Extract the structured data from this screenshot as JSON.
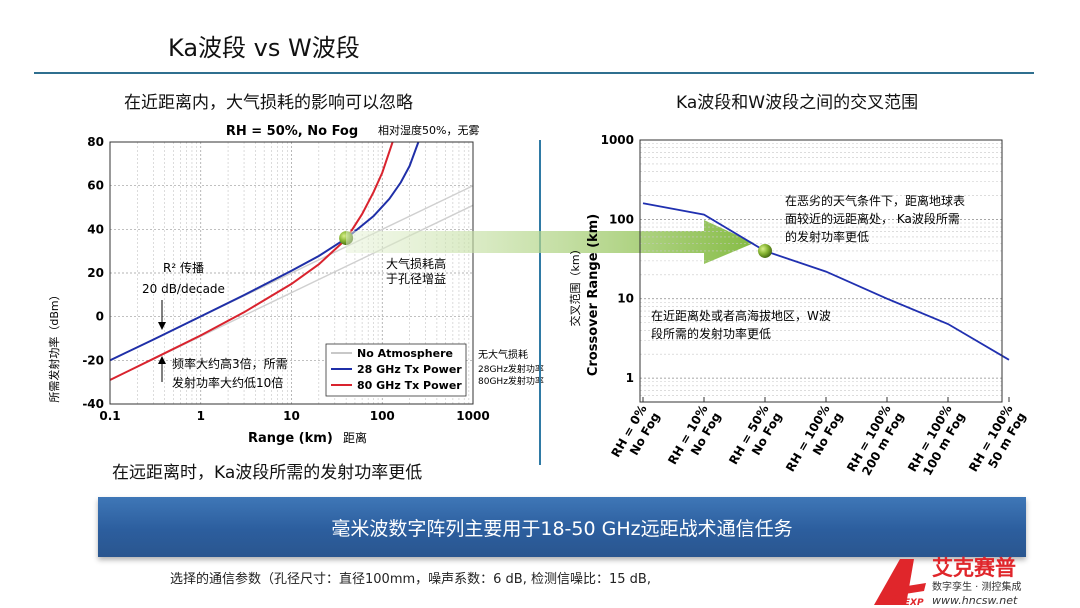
{
  "slide": {
    "title": "Ka波段 vs W波段",
    "left_caption": "在近距离内，大气损耗的影响可以忽略",
    "right_caption": "Ka波段和W波段之间的交叉范围",
    "bottom_left_caption": "在远距离时，Ka波段所需的发射功率更低",
    "banner": "毫米波数字阵列主要用于18-50 GHz远距战术通信任务",
    "footnote": "选择的通信参数（孔径尺寸：直径100mm，噪声系数：6 dB, 检测信噪比：15 dB,"
  },
  "logo": {
    "name": "艾克赛普",
    "tagline": "数字孪生 · 测控集成",
    "url": "www.hncsw.net",
    "mark": "ACCEXP"
  },
  "colors": {
    "accent_blue": "#2f6f8f",
    "banner_blue": "#2c5e9e",
    "series_28ghz": "#1f2fa8",
    "series_80ghz": "#d9232e",
    "series_no_atm": "#c8c8c8",
    "arrow_green": "#8cc63f",
    "marker_green": "#6a9a1f",
    "logo_red": "#e0262b"
  },
  "chart_data": [
    {
      "type": "line",
      "title": "RH = 50%, No Fog",
      "title_note": "相对湿度50%，无雾",
      "xlabel": "Range (km)",
      "xlabel_cn": "距离",
      "ylabel": "所需发射功率（dBm）",
      "xscale": "log",
      "xlim": [
        0.1,
        1000
      ],
      "ylim": [
        -40,
        80
      ],
      "xticks": [
        0.1,
        1,
        10,
        100,
        1000
      ],
      "xtick_labels": [
        "0.1",
        "1",
        "10",
        "100",
        "1000"
      ],
      "yticks": [
        -40,
        -20,
        0,
        20,
        40,
        60,
        80
      ],
      "grid": true,
      "legend_position": "bottom-right",
      "legend_note": [
        "无大气损耗",
        "28GHz发射功率",
        "80GHz发射功率"
      ],
      "series": [
        {
          "name": "No Atmosphere",
          "color": "#d0d0d0",
          "x": [
            0.1,
            1000
          ],
          "y": [
            -20,
            60
          ]
        },
        {
          "name": "No Atmosphere",
          "color": "#d0d0d0",
          "x": [
            0.1,
            1000
          ],
          "y": [
            -29,
            51
          ]
        },
        {
          "name": "28 GHz Tx Power",
          "color": "#1f2fa8",
          "x": [
            0.1,
            0.3,
            1,
            3,
            10,
            20,
            40,
            80,
            120,
            160,
            200,
            250
          ],
          "y": [
            -20,
            -10.5,
            0.1,
            9.9,
            21,
            27.8,
            35.8,
            46,
            54,
            61.5,
            69,
            80
          ]
        },
        {
          "name": "80 GHz Tx Power",
          "color": "#d9232e",
          "x": [
            0.1,
            0.3,
            1,
            3,
            10,
            20,
            40,
            60,
            80,
            100,
            130
          ],
          "y": [
            -29,
            -19.3,
            -8.6,
            2,
            15,
            24,
            35.5,
            47,
            57,
            66,
            80
          ]
        }
      ],
      "crossover_point": {
        "x": 40,
        "y": 36
      },
      "annotations": [
        {
          "text": "R² 传播"
        },
        {
          "text": "20 dB/decade"
        },
        {
          "text": "大气损耗高"
        },
        {
          "text": "于孔径增益"
        },
        {
          "text": "频率大约高3倍，所需"
        },
        {
          "text": "发射功率大约低10倍"
        }
      ]
    },
    {
      "type": "line",
      "ylabel": "Crossover Range (km)",
      "ylabel_cn": "交叉范围（km）",
      "yscale": "log",
      "ylim": [
        0.5,
        1000
      ],
      "yticks": [
        1,
        10,
        100,
        1000
      ],
      "ytick_labels": [
        "1",
        "10",
        "100",
        "1000"
      ],
      "grid": true,
      "categories": [
        [
          "RH = 0%",
          "No Fog"
        ],
        [
          "RH = 10%",
          "No Fog"
        ],
        [
          "RH = 50%",
          "No Fog"
        ],
        [
          "RH = 100%",
          "No Fog"
        ],
        [
          "RH = 100%",
          "200 m Fog"
        ],
        [
          "RH = 100%",
          "100 m Fog"
        ],
        [
          "RH = 100%",
          "50 m Fog"
        ]
      ],
      "series": [
        {
          "color": "#2030b0",
          "values": [
            160,
            115,
            40,
            22,
            10,
            4.8,
            1.7
          ]
        }
      ],
      "highlight_index": 2,
      "annotations": [
        {
          "text": "在恶劣的天气条件下，距离地球表"
        },
        {
          "text": "面较近的远距离处，    Ka波段所需"
        },
        {
          "text": "的发射功率更低"
        },
        {
          "text": "在近距离处或者高海拔地区，W波"
        },
        {
          "text": "段所需的发射功率更低"
        }
      ]
    }
  ]
}
